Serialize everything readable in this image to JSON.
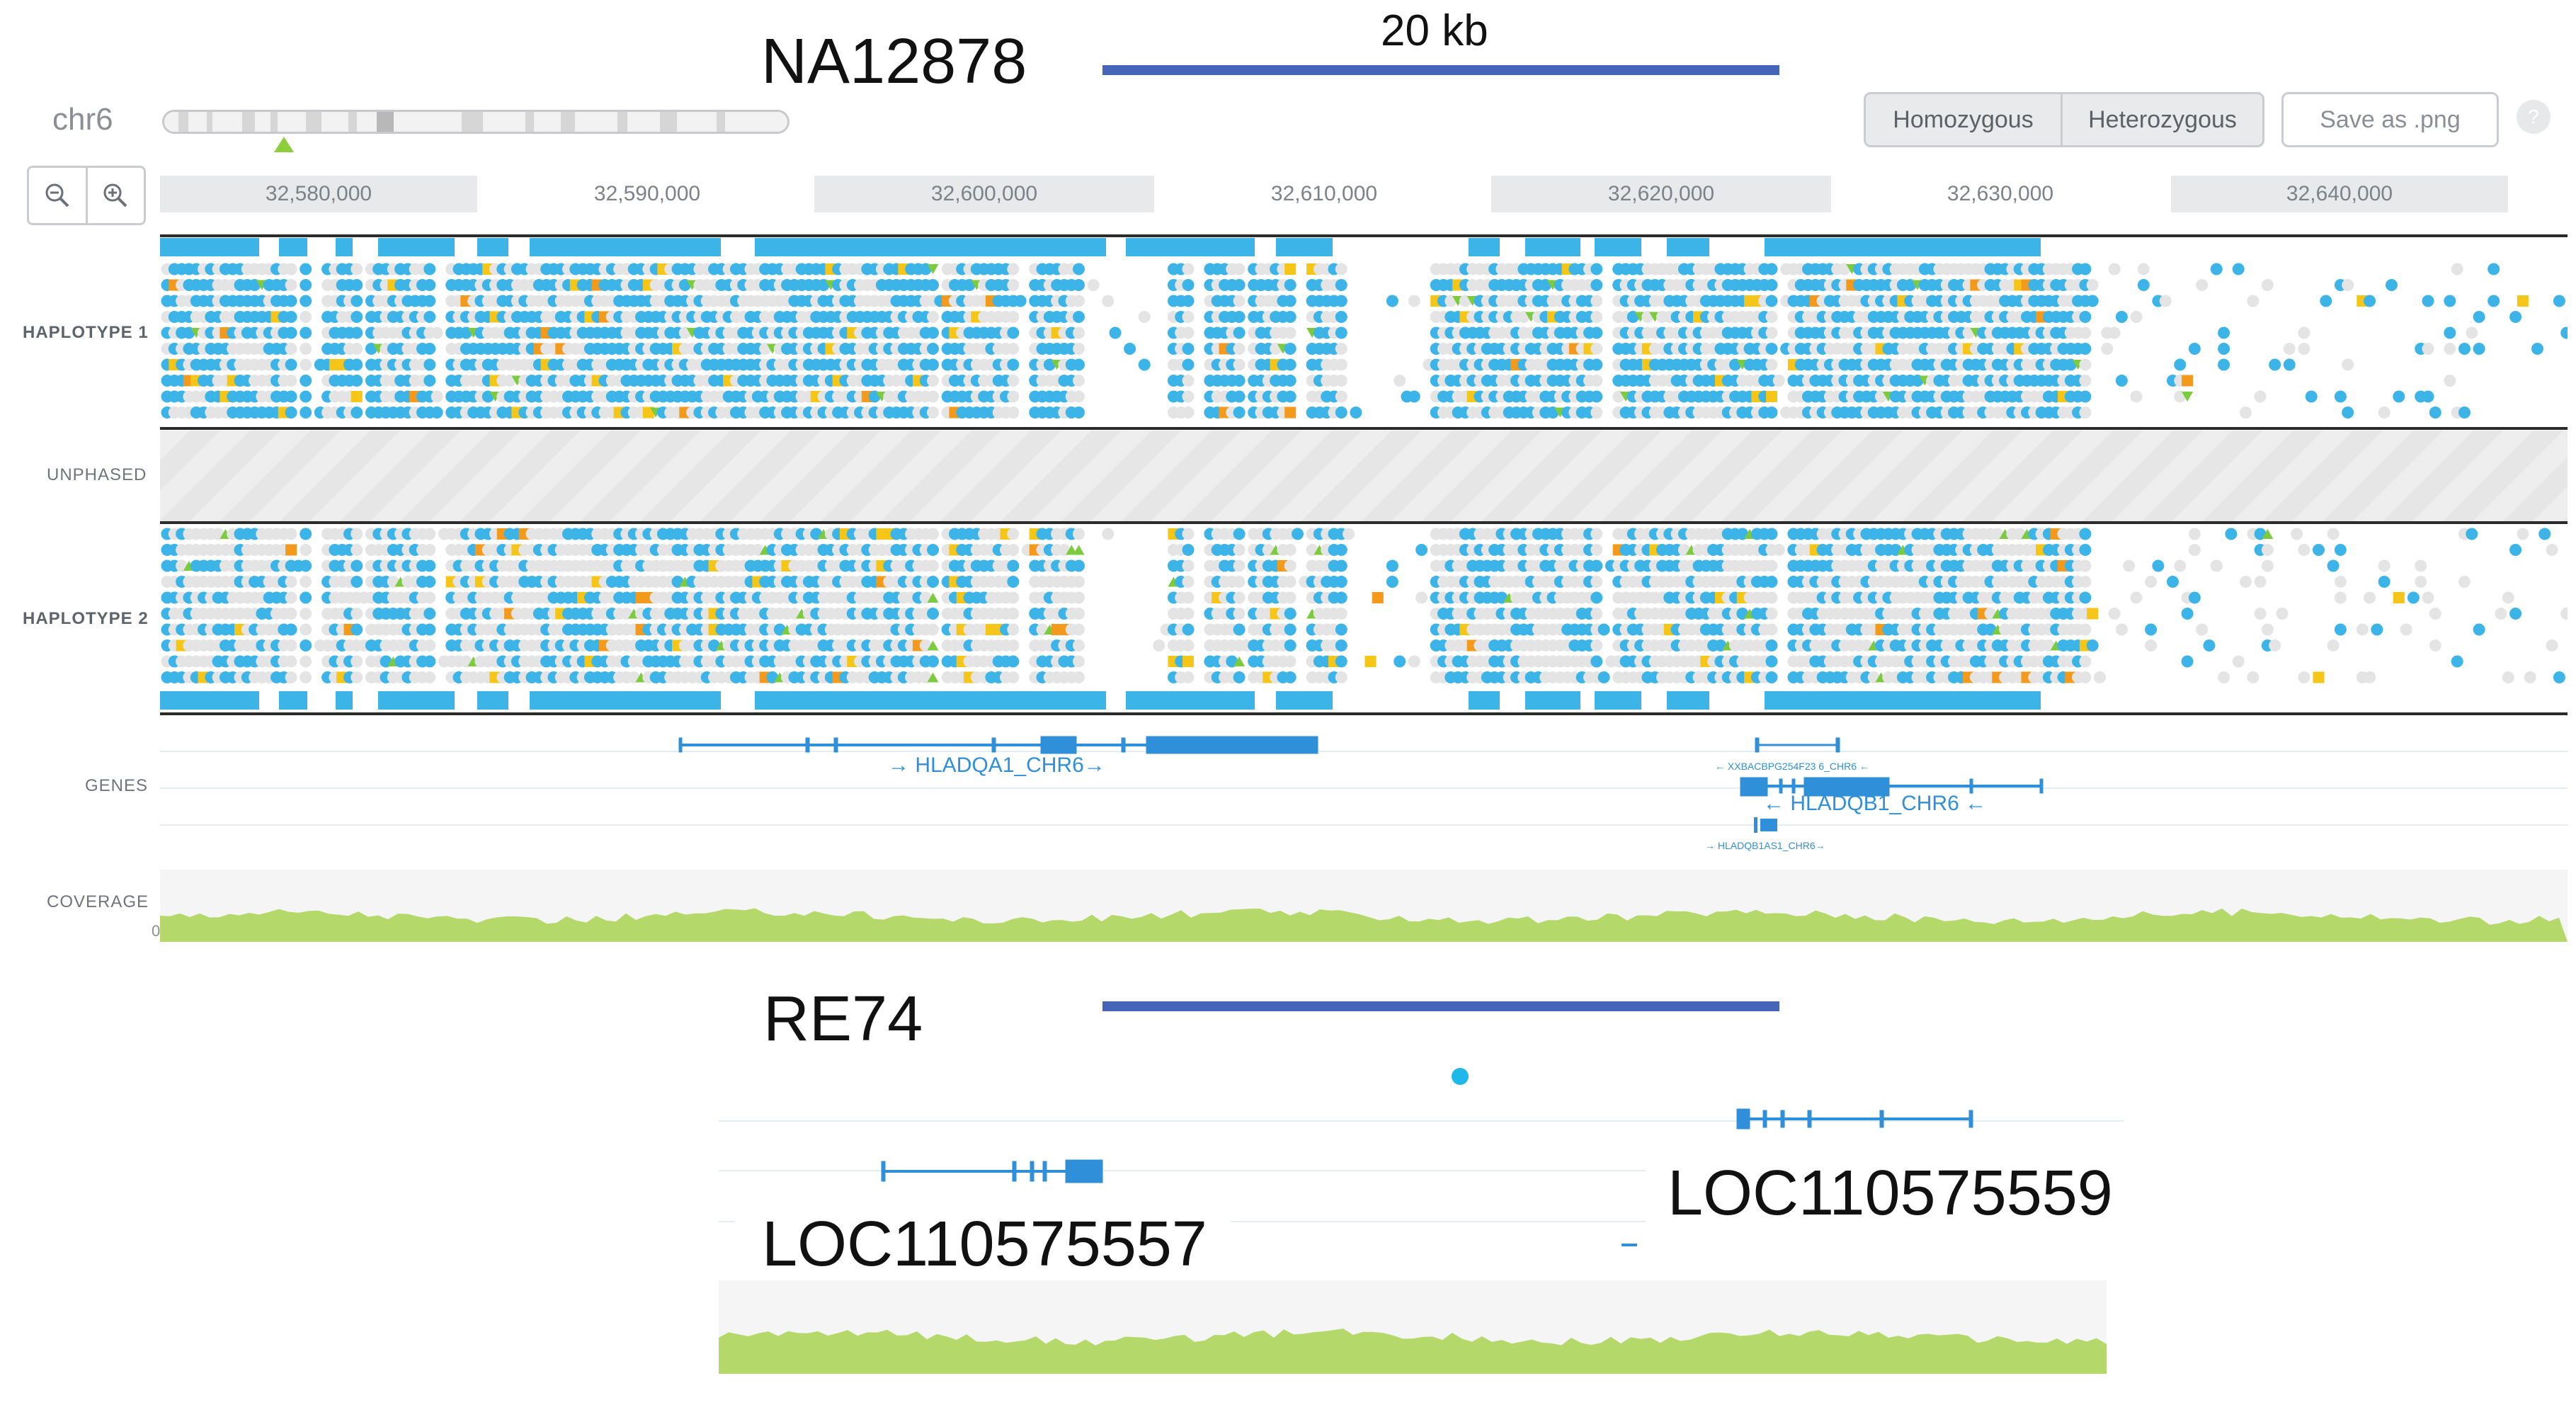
{
  "top_panel": {
    "sample_label": "NA12878",
    "scale_label": "20 kb",
    "chromosome": "chr6",
    "buttons": {
      "homozygous": "Homozygous",
      "heterozygous": "Heterozygous",
      "save_png": "Save as .png",
      "help": "?"
    },
    "zoom": {
      "out": "−",
      "in": "+"
    },
    "ticks": [
      "32,580,000",
      "32,590,000",
      "32,600,000",
      "32,610,000",
      "32,620,000",
      "32,630,000",
      "32,640,000"
    ],
    "tracks": {
      "haplotype1": "HAPLOTYPE 1",
      "unphased": "UNPHASED",
      "haplotype2": "HAPLOTYPE 2",
      "genes": "GENES",
      "coverage": "COVERAGE",
      "coverage_zero": "0"
    },
    "genes": {
      "hladqa1": "→ HLADQA1_CHR6→",
      "xxbac": "← XXBACBPG254F23 6_CHR6 ←",
      "hladqb1": "← HLADQB1_CHR6 ←",
      "hladqb1as1": "→ HLADQB1AS1_CHR6→"
    }
  },
  "bottom_panel": {
    "sample_label": "RE74",
    "gene_left": "LOC110575557",
    "gene_right": "LOC110575559"
  },
  "colors": {
    "homozygous_blue": "#3db4e8",
    "heterozygous_gray": "#e4e4e4",
    "snp_yellow": "#f5c518",
    "snp_orange": "#f39a1c",
    "indel_green": "#7ccb3e",
    "gene_blue": "#2f8fd8",
    "coverage_green": "#b5d86a",
    "scale_bar": "#4565b9"
  }
}
